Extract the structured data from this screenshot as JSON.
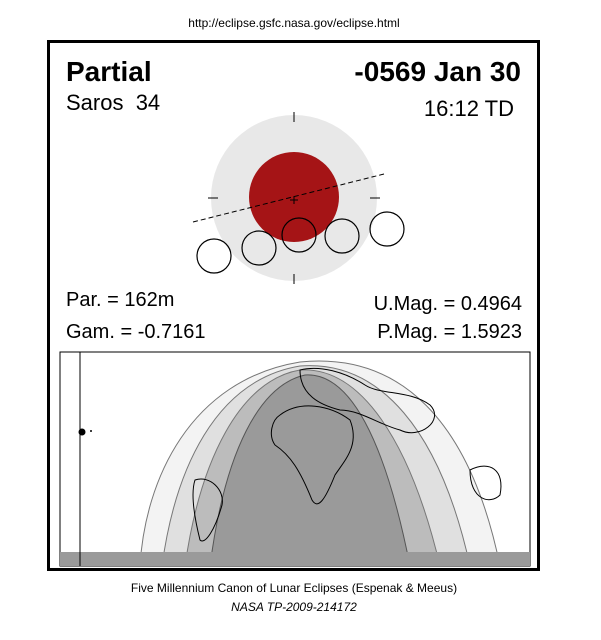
{
  "header": {
    "url": "http://eclipse.gsfc.nasa.gov/eclipse.html"
  },
  "panel": {
    "eclipse_type": "Partial",
    "date": "-0569 Jan 30",
    "saros": "Saros  34",
    "time": "16:12 TD",
    "parameters": {
      "partial_duration": "Par. = 162m",
      "gamma": "Gam. = -0.7161",
      "umbral_magnitude": "U.Mag. = 0.4964",
      "penumbral_magnitude": "P.Mag. = 1.5923"
    }
  },
  "footer": {
    "canon": "Five Millennium Canon of Lunar Eclipses (Espenak & Meeus)",
    "publication": "NASA TP-2009-214172"
  }
}
